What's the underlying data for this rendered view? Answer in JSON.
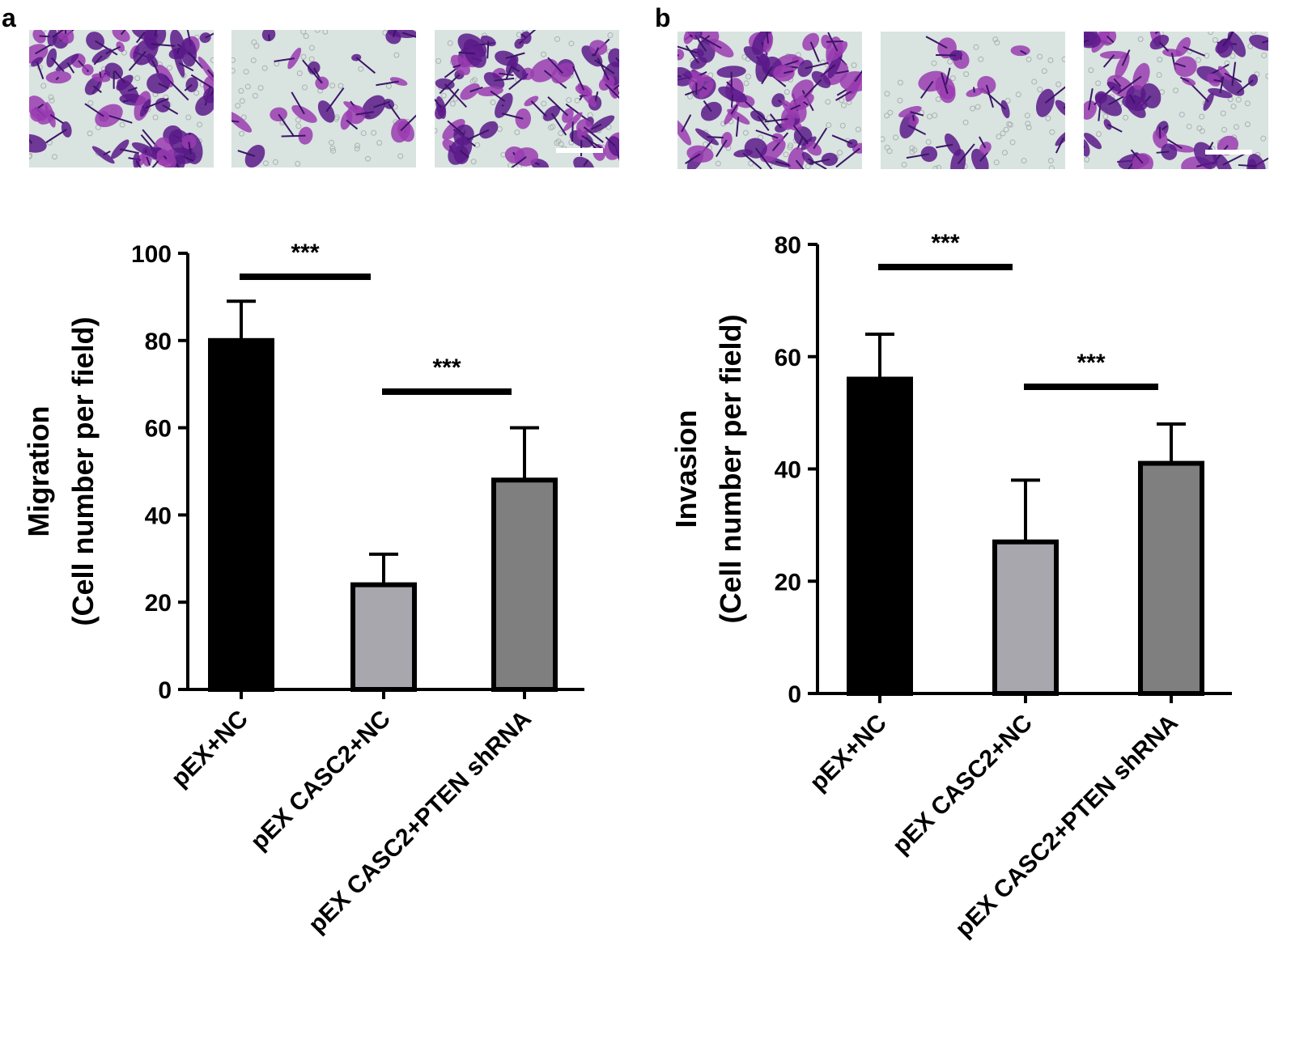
{
  "chart_data": [
    {
      "type": "bar",
      "panel": "a",
      "ylabel": [
        "Migration",
        "(Cell number per field)"
      ],
      "categories": [
        "pEX+NC",
        "pEX CASC2+NC",
        "pEX CASC2+PTEN shRNA"
      ],
      "values": [
        80,
        24,
        48
      ],
      "errors": [
        9,
        7,
        12
      ],
      "colors": [
        "#000000",
        "#a7a7ad",
        "#7f7f7f"
      ],
      "ylim": [
        0,
        100
      ],
      "yticks": [
        0,
        20,
        40,
        60,
        80,
        100
      ],
      "annotations": [
        "***",
        "***"
      ]
    },
    {
      "type": "bar",
      "panel": "b",
      "ylabel": [
        "Invasion",
        "(Cell number per field)"
      ],
      "categories": [
        "pEX+NC",
        "pEX CASC2+NC",
        "pEX CASC2+PTEN shRNA"
      ],
      "values": [
        56,
        27,
        41
      ],
      "errors": [
        8,
        11,
        7
      ],
      "colors": [
        "#000000",
        "#a7a7ad",
        "#7f7f7f"
      ],
      "ylim": [
        0,
        80
      ],
      "yticks": [
        0,
        20,
        40,
        60,
        80
      ],
      "annotations": [
        "***",
        "***"
      ]
    }
  ]
}
